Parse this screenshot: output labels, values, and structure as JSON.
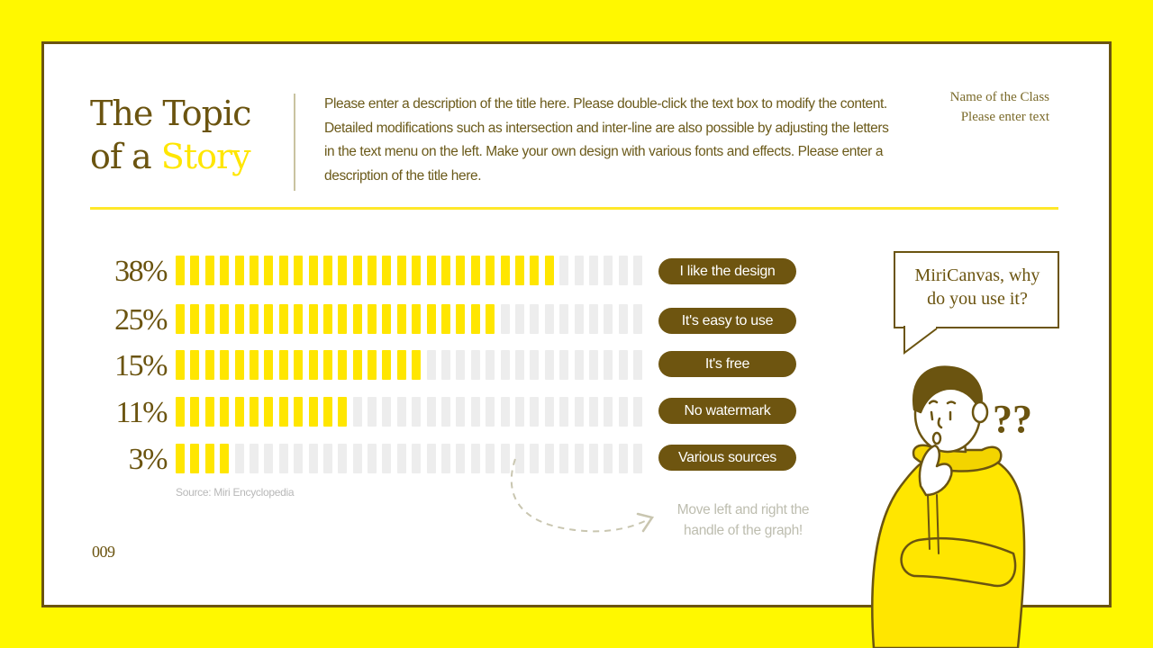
{
  "slide": {
    "title_line1": "The Topic",
    "title_line2_prefix": "of a ",
    "title_line2_highlight": "Story",
    "description": "Please enter a description of the title here. Please double-click the text box to modify the content. Detailed modifications such as intersection and inter-line are also possible by adjusting the letters in the text menu on the left. Make your own design with various fonts and effects. Please enter a description of the title here.",
    "class_name": "Name of the Class",
    "class_text": "Please enter text",
    "page_number": "009",
    "source": "Source: Miri Encyclopedia",
    "hint_line1": "Move left and right the",
    "hint_line2": "handle of the graph!",
    "bubble_line1": "MiriCanvas, why",
    "bubble_line2": "do you use it?",
    "question_marks": "??",
    "colors": {
      "background": "#FFF800",
      "border": "#6B5410",
      "accent": "#FFE600",
      "pill": "#6E5510",
      "segment_off": "#EDEDED"
    }
  },
  "chart_data": {
    "type": "bar",
    "orientation": "horizontal",
    "title": "MiriCanvas, why do you use it?",
    "categories": [
      "I like the design",
      "It's easy to use",
      "It's free",
      "No watermark",
      "Various sources"
    ],
    "values": [
      38,
      25,
      15,
      11,
      3
    ],
    "value_labels": [
      "38%",
      "25%",
      "15%",
      "11%",
      "3%"
    ],
    "segments_total": 32,
    "segments_filled": [
      26,
      22,
      17,
      12,
      4
    ],
    "xlabel": "",
    "ylabel": "",
    "grid": false,
    "source": "Source: Miri Encyclopedia"
  }
}
